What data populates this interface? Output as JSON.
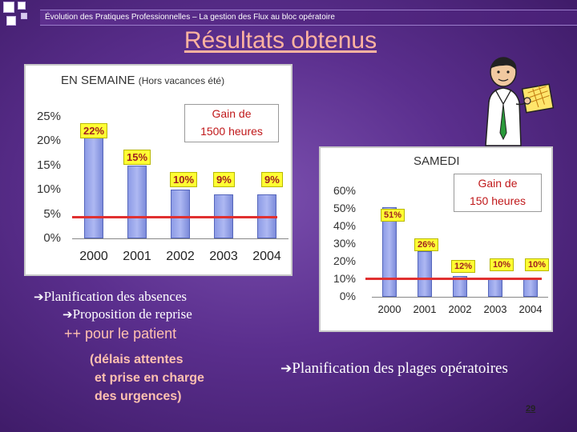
{
  "header": {
    "breadcrumb": "Évolution des Pratiques Professionnelles – La gestion des Flux au bloc opératoire",
    "title": "Résultats obtenus"
  },
  "chart_data": [
    {
      "type": "bar",
      "title": "EN SEMAINE",
      "subtitle": "(Hors vacances été)",
      "categories": [
        "2000",
        "2001",
        "2002",
        "2003",
        "2004"
      ],
      "values": [
        22,
        15,
        10,
        9,
        9
      ],
      "data_labels": [
        "22%",
        "15%",
        "10%",
        "9%",
        "9%"
      ],
      "yticks": [
        "0%",
        "5%",
        "10%",
        "15%",
        "20%",
        "25%"
      ],
      "ylim": [
        0,
        25
      ],
      "target_line": 4.5,
      "annotation": {
        "line1": "Gain de",
        "line2": "1500 heures"
      },
      "colors": {
        "bar": "#9aa6ec",
        "label_bg": "#ffff33",
        "label_text": "#a02020",
        "line": "#e03030"
      }
    },
    {
      "type": "bar",
      "title": "SAMEDI",
      "subtitle": "",
      "categories": [
        "2000",
        "2001",
        "2002",
        "2003",
        "2004"
      ],
      "values": [
        51,
        26,
        12,
        10,
        10
      ],
      "data_labels": [
        "51%",
        "26%",
        "12%",
        "10%",
        "10%"
      ],
      "yticks": [
        "0%",
        "10%",
        "20%",
        "30%",
        "40%",
        "50%",
        "60%"
      ],
      "ylim": [
        0,
        60
      ],
      "target_line": 10.5,
      "annotation": {
        "line1": "Gain de",
        "line2": "150 heures"
      },
      "colors": {
        "bar": "#9aa6ec",
        "label_bg": "#ffff33",
        "label_text": "#a02020",
        "line": "#e03030"
      }
    }
  ],
  "notes": {
    "absences": "Planification des absences",
    "reprise": "Proposition de reprise",
    "patient": "++ pour le patient",
    "detail1": "(délais attentes",
    "detail2": "et prise en charge",
    "detail3": "des urgences)",
    "plages": "Planification des plages opératoires",
    "arrow_glyph": "➔"
  },
  "page_number": "29"
}
